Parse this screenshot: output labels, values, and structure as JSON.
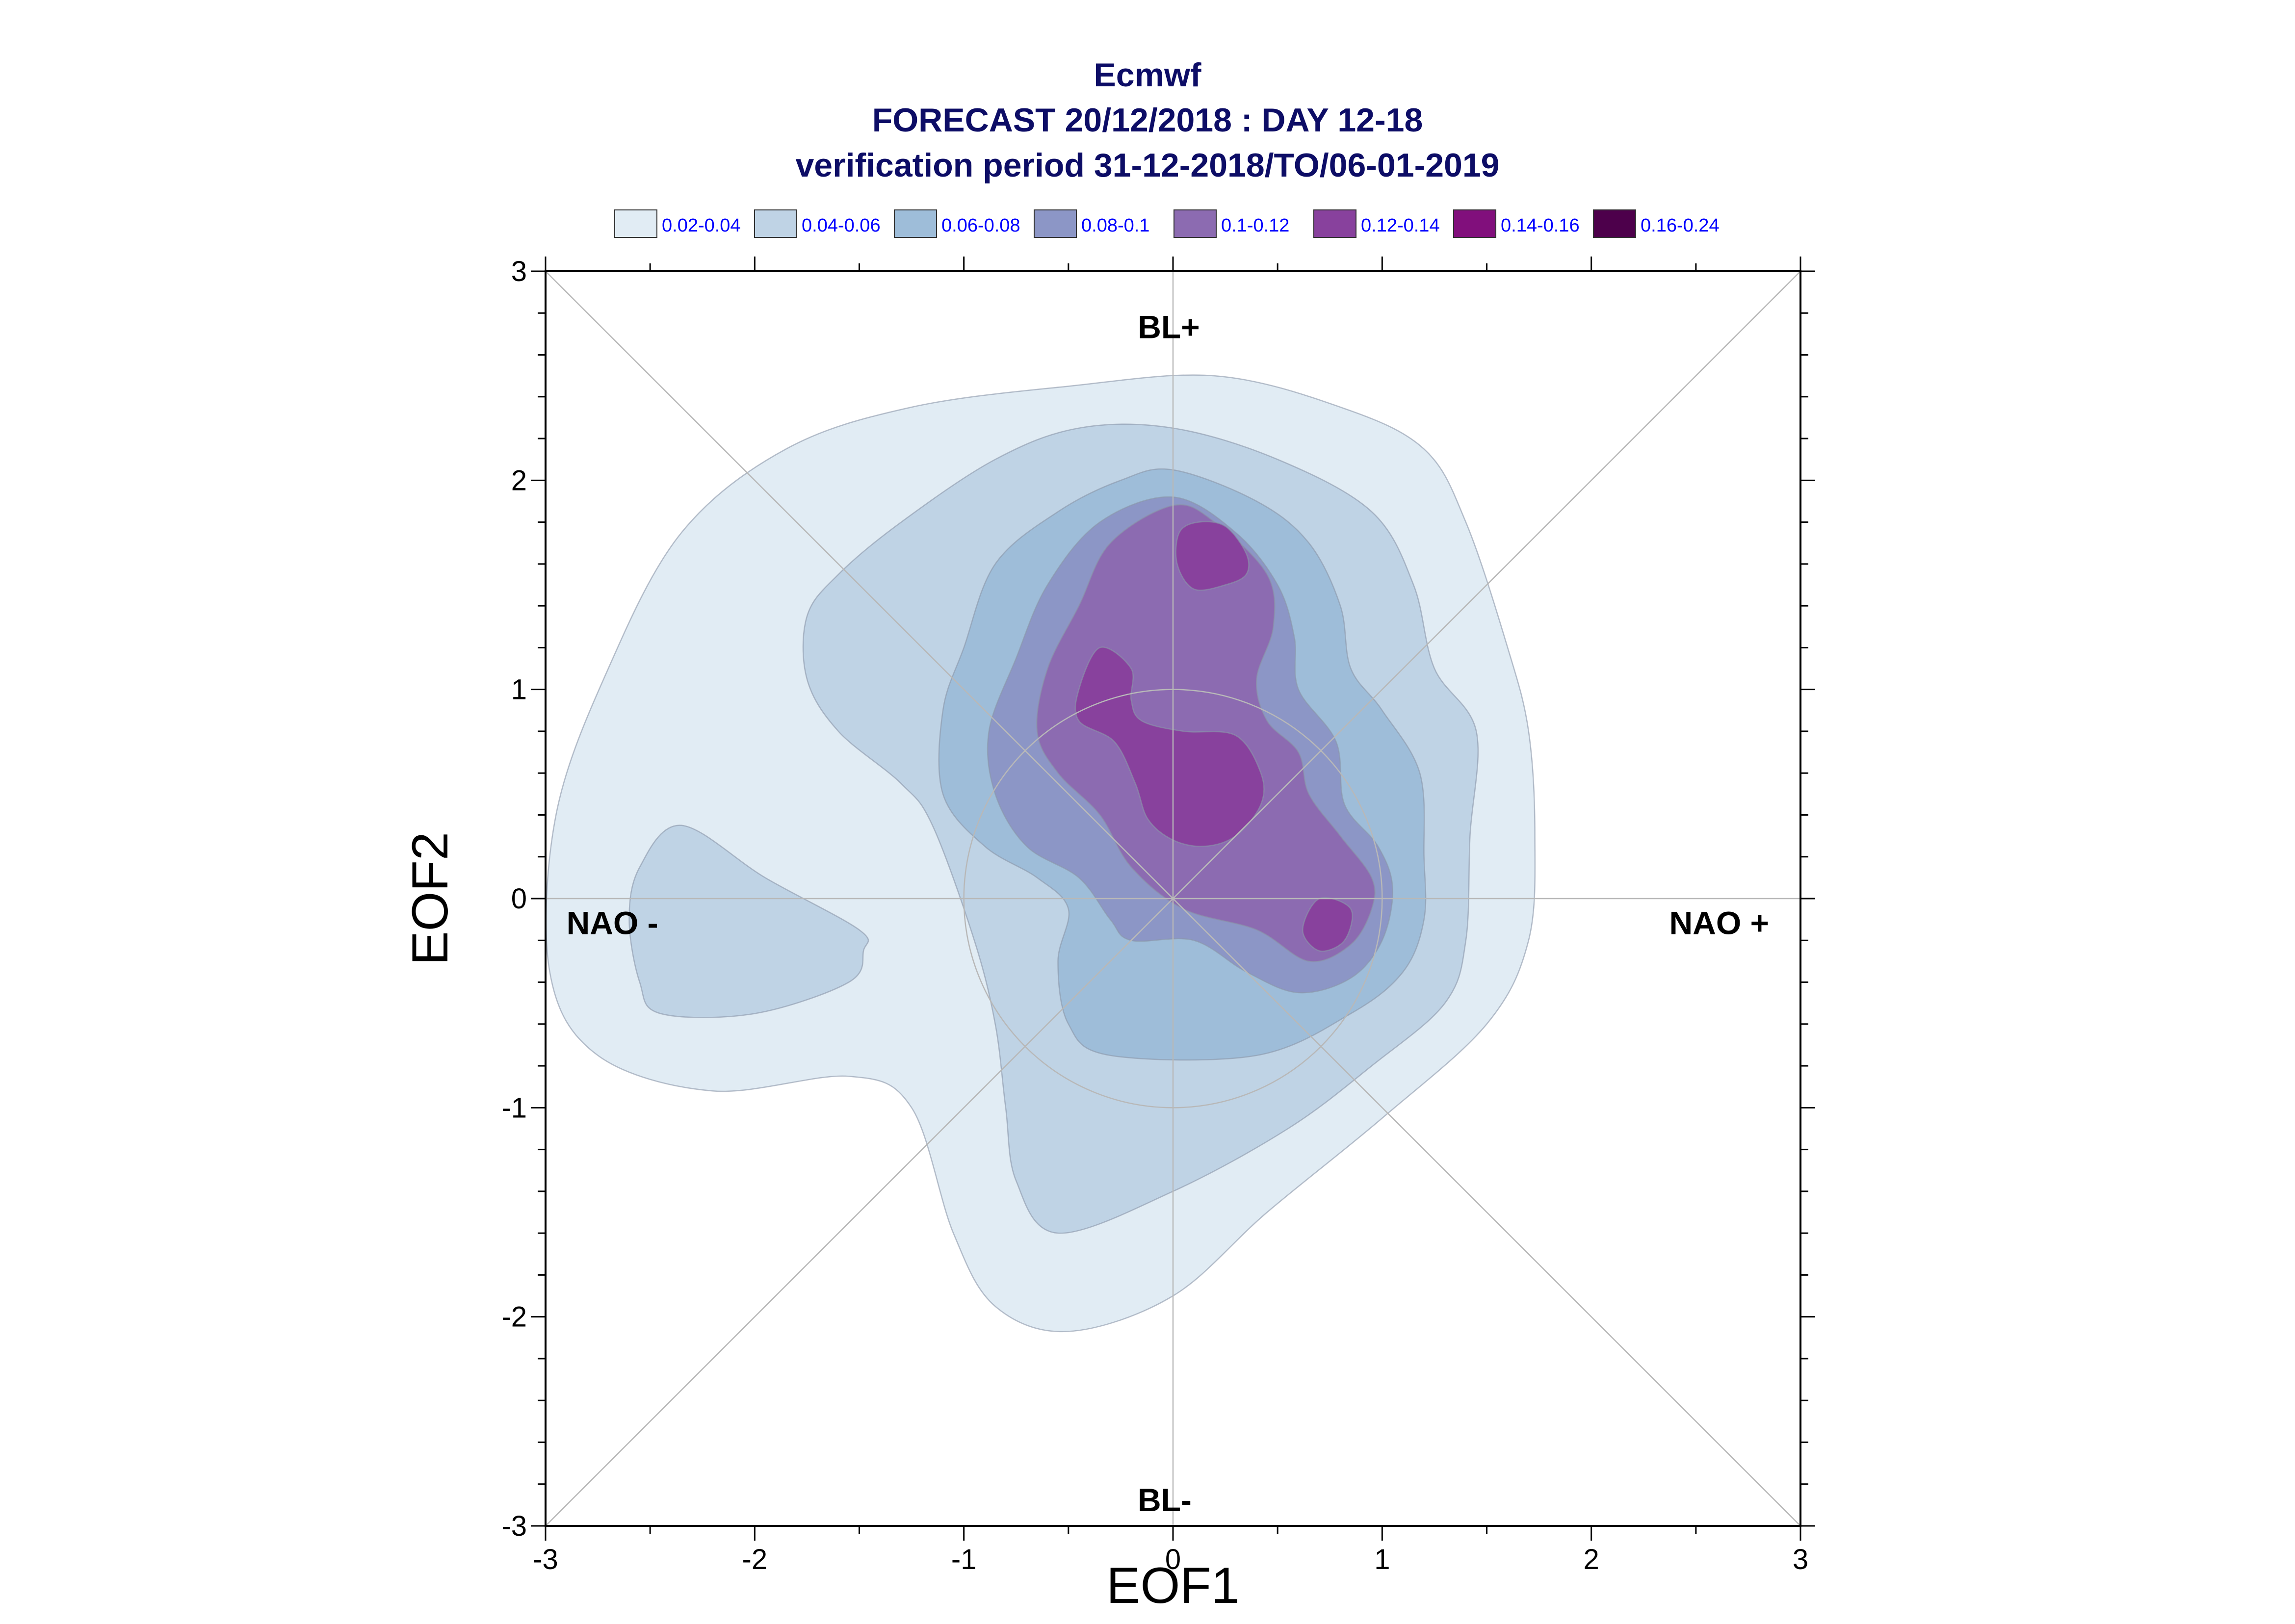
{
  "chart_data": {
    "type": "contour",
    "title_lines": [
      "Ecmwf",
      "FORECAST 20/12/2018 : DAY 12-18",
      "verification period 31-12-2018/TO/06-01-2019"
    ],
    "xlabel": "EOF1",
    "ylabel": "EOF2",
    "xlim": [
      -3,
      3
    ],
    "ylim": [
      -3,
      3
    ],
    "x_ticks": [
      "-3",
      "-2",
      "-1",
      "0",
      "1",
      "2",
      "3"
    ],
    "y_ticks": [
      "3",
      "2",
      "1",
      "0",
      "-1",
      "-2",
      "-3"
    ],
    "regime_labels": {
      "top": "BL+",
      "bottom": "BL-",
      "left": "NAO -",
      "right": "NAO +"
    },
    "legend": [
      {
        "label": "0.02-0.04",
        "color": "#e1ecf4"
      },
      {
        "label": "0.04-0.06",
        "color": "#bfd3e5"
      },
      {
        "label": "0.06-0.08",
        "color": "#9ebdd9"
      },
      {
        "label": "0.08-0.1",
        "color": "#8c96c6"
      },
      {
        "label": "0.1-0.12",
        "color": "#8c6bb1"
      },
      {
        "label": "0.12-0.14",
        "color": "#88419d"
      },
      {
        "label": "0.14-0.16",
        "color": "#810f7c"
      },
      {
        "label": "0.16-0.24",
        "color": "#4d004b"
      }
    ],
    "reference_circle_radius": 1,
    "diagonals": true,
    "contour_levels": [
      {
        "level": "0.02-0.04",
        "color": "#e1ecf4",
        "regions": [
          [
            [
              0.2,
              2.5
            ],
            [
              0.8,
              2.35
            ],
            [
              1.2,
              2.15
            ],
            [
              1.4,
              1.8
            ],
            [
              1.6,
              1.2
            ],
            [
              1.7,
              0.8
            ],
            [
              1.73,
              0.3
            ],
            [
              1.7,
              -0.2
            ],
            [
              1.5,
              -0.6
            ],
            [
              1.0,
              -1.05
            ],
            [
              0.45,
              -1.5
            ],
            [
              0.0,
              -1.9
            ],
            [
              -0.5,
              -2.07
            ],
            [
              -0.85,
              -1.95
            ],
            [
              -1.05,
              -1.6
            ],
            [
              -1.25,
              -1.0
            ],
            [
              -1.55,
              -0.85
            ],
            [
              -2.2,
              -0.92
            ],
            [
              -2.75,
              -0.75
            ],
            [
              -2.98,
              -0.35
            ],
            [
              -2.95,
              0.4
            ],
            [
              -2.7,
              1.1
            ],
            [
              -2.35,
              1.75
            ],
            [
              -1.85,
              2.15
            ],
            [
              -1.25,
              2.35
            ],
            [
              -0.5,
              2.45
            ]
          ]
        ]
      },
      {
        "level": "0.04-0.06",
        "color": "#bfd3e5",
        "regions": [
          [
            [
              0.0,
              2.25
            ],
            [
              0.5,
              2.1
            ],
            [
              0.95,
              1.85
            ],
            [
              1.15,
              1.5
            ],
            [
              1.25,
              1.1
            ],
            [
              1.45,
              0.8
            ],
            [
              1.42,
              0.3
            ],
            [
              1.4,
              -0.2
            ],
            [
              1.3,
              -0.5
            ],
            [
              0.95,
              -0.8
            ],
            [
              0.55,
              -1.1
            ],
            [
              0.0,
              -1.4
            ],
            [
              -0.55,
              -1.6
            ],
            [
              -0.75,
              -1.35
            ],
            [
              -0.8,
              -1.0
            ],
            [
              -0.85,
              -0.6
            ],
            [
              -0.95,
              -0.2
            ],
            [
              -1.15,
              0.35
            ],
            [
              -1.3,
              0.55
            ],
            [
              -1.6,
              0.8
            ],
            [
              -1.75,
              1.05
            ],
            [
              -1.75,
              1.35
            ],
            [
              -1.6,
              1.55
            ],
            [
              -1.3,
              1.8
            ],
            [
              -0.85,
              2.1
            ],
            [
              -0.45,
              2.25
            ]
          ],
          [
            [
              -2.35,
              0.35
            ],
            [
              -1.95,
              0.1
            ],
            [
              -1.5,
              -0.15
            ],
            [
              -1.48,
              -0.25
            ],
            [
              -1.55,
              -0.4
            ],
            [
              -2.0,
              -0.55
            ],
            [
              -2.45,
              -0.55
            ],
            [
              -2.55,
              -0.4
            ],
            [
              -2.6,
              -0.1
            ],
            [
              -2.55,
              0.15
            ]
          ]
        ]
      },
      {
        "level": "0.06-0.08",
        "color": "#9ebdd9",
        "regions": [
          [
            [
              0.0,
              2.05
            ],
            [
              0.4,
              1.9
            ],
            [
              0.65,
              1.7
            ],
            [
              0.8,
              1.4
            ],
            [
              0.85,
              1.1
            ],
            [
              1.0,
              0.9
            ],
            [
              1.18,
              0.6
            ],
            [
              1.2,
              0.2
            ],
            [
              1.2,
              -0.1
            ],
            [
              1.1,
              -0.35
            ],
            [
              0.85,
              -0.55
            ],
            [
              0.4,
              -0.75
            ],
            [
              -0.3,
              -0.75
            ],
            [
              -0.5,
              -0.6
            ],
            [
              -0.55,
              -0.3
            ],
            [
              -0.5,
              -0.05
            ],
            [
              -0.65,
              0.1
            ],
            [
              -0.9,
              0.25
            ],
            [
              -1.1,
              0.5
            ],
            [
              -1.1,
              0.9
            ],
            [
              -1.0,
              1.2
            ],
            [
              -0.85,
              1.6
            ],
            [
              -0.55,
              1.85
            ],
            [
              -0.25,
              2.0
            ]
          ]
        ]
      },
      {
        "level": "0.08-0.1",
        "color": "#8c96c6",
        "regions": [
          [
            [
              0.0,
              1.92
            ],
            [
              0.3,
              1.75
            ],
            [
              0.5,
              1.5
            ],
            [
              0.58,
              1.25
            ],
            [
              0.6,
              1.0
            ],
            [
              0.78,
              0.75
            ],
            [
              0.82,
              0.45
            ],
            [
              0.98,
              0.25
            ],
            [
              1.05,
              0.05
            ],
            [
              1.0,
              -0.2
            ],
            [
              0.85,
              -0.38
            ],
            [
              0.6,
              -0.45
            ],
            [
              0.35,
              -0.35
            ],
            [
              0.1,
              -0.2
            ],
            [
              -0.2,
              -0.2
            ],
            [
              -0.3,
              -0.1
            ],
            [
              -0.45,
              0.1
            ],
            [
              -0.7,
              0.25
            ],
            [
              -0.85,
              0.5
            ],
            [
              -0.88,
              0.8
            ],
            [
              -0.75,
              1.15
            ],
            [
              -0.6,
              1.5
            ],
            [
              -0.35,
              1.8
            ]
          ]
        ]
      },
      {
        "level": "0.1-0.12",
        "color": "#8c6bb1",
        "regions": [
          [
            [
              0.0,
              1.88
            ],
            [
              0.2,
              1.8
            ],
            [
              0.45,
              1.55
            ],
            [
              0.48,
              1.3
            ],
            [
              0.4,
              1.05
            ],
            [
              0.45,
              0.85
            ],
            [
              0.6,
              0.7
            ],
            [
              0.65,
              0.5
            ],
            [
              0.8,
              0.3
            ],
            [
              0.95,
              0.1
            ],
            [
              0.95,
              -0.05
            ],
            [
              0.85,
              -0.22
            ],
            [
              0.65,
              -0.3
            ],
            [
              0.4,
              -0.15
            ],
            [
              0.05,
              -0.05
            ],
            [
              -0.2,
              0.15
            ],
            [
              -0.35,
              0.4
            ],
            [
              -0.55,
              0.6
            ],
            [
              -0.65,
              0.8
            ],
            [
              -0.6,
              1.1
            ],
            [
              -0.45,
              1.4
            ],
            [
              -0.3,
              1.7
            ]
          ]
        ]
      },
      {
        "level": "0.12-0.14",
        "color": "#88419d",
        "regions": [
          [
            [
              0.12,
              1.8
            ],
            [
              0.25,
              1.78
            ],
            [
              0.35,
              1.65
            ],
            [
              0.35,
              1.55
            ],
            [
              0.25,
              1.5
            ],
            [
              0.1,
              1.48
            ],
            [
              0.02,
              1.6
            ],
            [
              0.03,
              1.75
            ]
          ],
          [
            [
              -0.35,
              1.2
            ],
            [
              -0.2,
              1.1
            ],
            [
              -0.2,
              0.95
            ],
            [
              -0.15,
              0.85
            ],
            [
              0.05,
              0.8
            ],
            [
              0.3,
              0.78
            ],
            [
              0.42,
              0.6
            ],
            [
              0.42,
              0.45
            ],
            [
              0.3,
              0.3
            ],
            [
              0.15,
              0.25
            ],
            [
              0.0,
              0.28
            ],
            [
              -0.12,
              0.38
            ],
            [
              -0.18,
              0.55
            ],
            [
              -0.28,
              0.75
            ],
            [
              -0.45,
              0.85
            ],
            [
              -0.45,
              1.0
            ]
          ],
          [
            [
              0.7,
              0.0
            ],
            [
              0.85,
              -0.05
            ],
            [
              0.82,
              -0.2
            ],
            [
              0.7,
              -0.25
            ],
            [
              0.62,
              -0.15
            ]
          ]
        ]
      }
    ]
  }
}
